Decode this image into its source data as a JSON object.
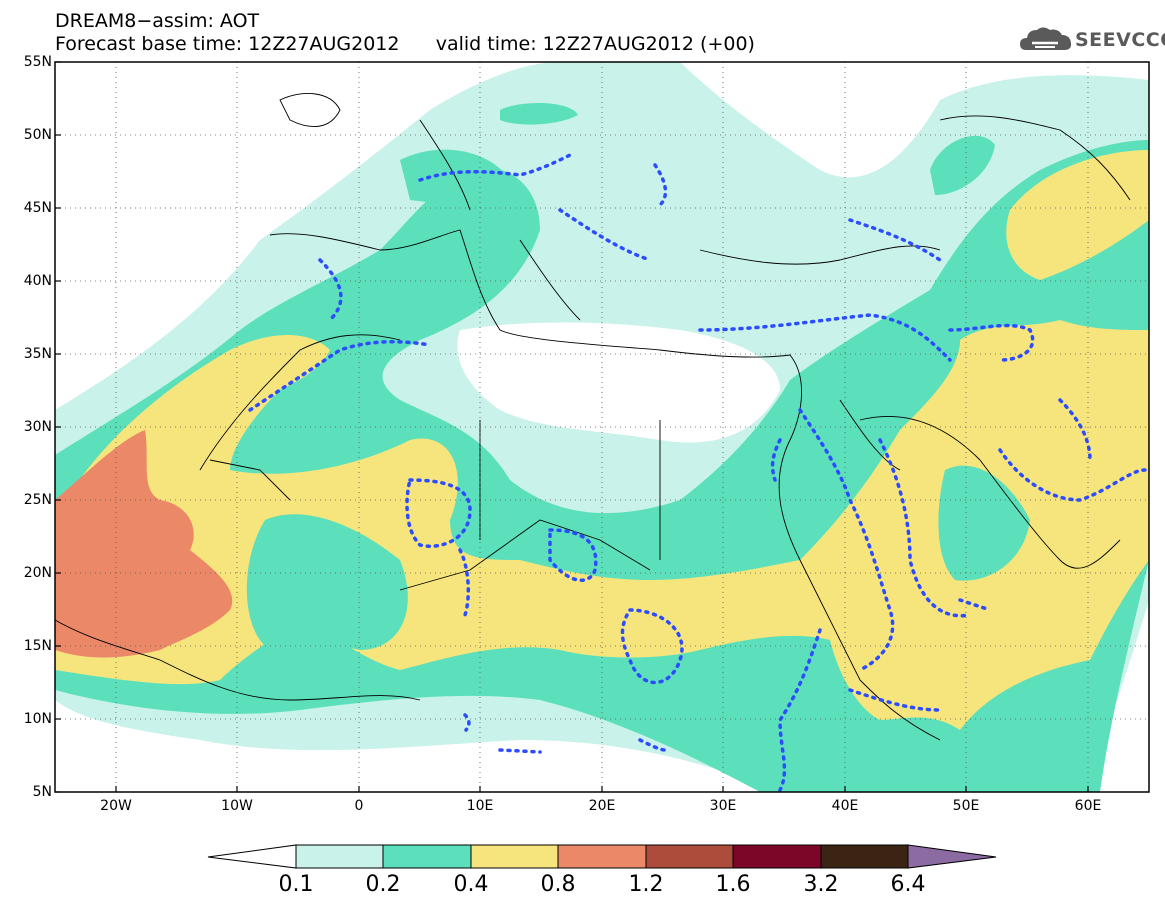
{
  "title": {
    "line1": "DREAM8−assim: AOT",
    "line2": "Forecast base time: 12Z27AUG2012      valid time: 12Z27AUG2012 (+00)"
  },
  "logo": {
    "text": "SEEVCCC",
    "icon": "cloud-icon"
  },
  "map": {
    "lat_labels": [
      "55N",
      "50N",
      "45N",
      "40N",
      "35N",
      "30N",
      "25N",
      "20N",
      "15N",
      "10N",
      "5N"
    ],
    "lon_labels": [
      "20W",
      "10W",
      "0",
      "10E",
      "20E",
      "30E",
      "40E",
      "50E",
      "60E"
    ]
  },
  "colorbar": {
    "labels": [
      "0.1",
      "0.2",
      "0.4",
      "0.8",
      "1.2",
      "1.6",
      "3.2",
      "6.4"
    ],
    "colors": [
      "#c8f2ea",
      "#5ce0bc",
      "#f6e57c",
      "#ea8868",
      "#ae4c3c",
      "#7c0628",
      "#3c2414",
      "#8c6aa2"
    ]
  },
  "colors": {
    "c1": "#c8f2ea",
    "c2": "#5ce0bc",
    "c3": "#f6e57c",
    "c4": "#ea8868",
    "contour": "#2c4cff",
    "coast": "#000000"
  }
}
